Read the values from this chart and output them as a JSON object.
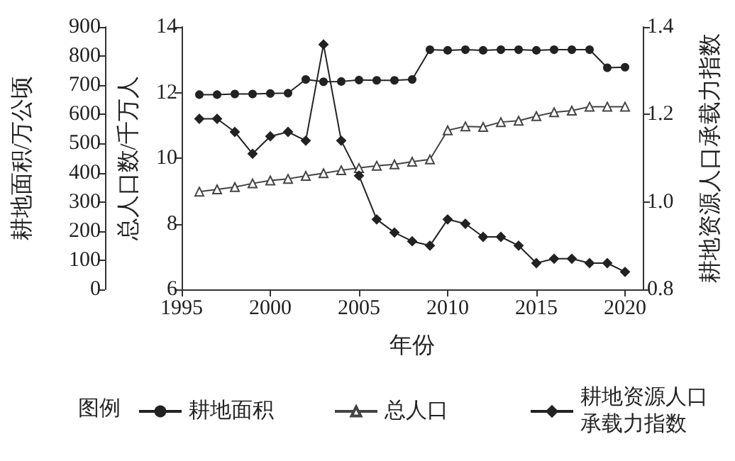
{
  "chart_data": {
    "type": "line",
    "xlabel": "年份",
    "ylabel": "耕地面积/万公顷",
    "y2label": "总人口数/千万人",
    "y3label": "耕地资源人口承载力指数",
    "legend_title": "图例",
    "legend": "bottom",
    "grid": false,
    "x": [
      1996,
      1997,
      1998,
      1999,
      2000,
      2001,
      2002,
      2003,
      2004,
      2005,
      2006,
      2007,
      2008,
      2009,
      2010,
      2011,
      2012,
      2013,
      2014,
      2015,
      2016,
      2017,
      2018,
      2019,
      2020
    ],
    "xlim": [
      1995,
      2021
    ],
    "xticks": [
      1995,
      2000,
      2005,
      2010,
      2015,
      2020
    ],
    "ylim": [
      0,
      900
    ],
    "yticks": [
      0,
      100,
      200,
      300,
      400,
      500,
      600,
      700,
      800,
      900
    ],
    "y2lim": [
      6,
      14
    ],
    "y2ticks": [
      6,
      8,
      10,
      12,
      14
    ],
    "y3lim": [
      0.8,
      1.4
    ],
    "y3ticks": [
      {
        "value": 0.8,
        "label": "0.8"
      },
      {
        "value": 1.0,
        "label": "1.0"
      },
      {
        "value": 1.2,
        "label": "1.2"
      },
      {
        "value": 1.4,
        "label": "1.4"
      }
    ],
    "series": [
      {
        "name": "耕地面积",
        "color": "#222222",
        "marker": "circle",
        "axis": "y",
        "values": [
          668,
          668,
          670,
          670,
          672,
          673,
          720,
          712,
          713,
          718,
          717,
          717,
          720,
          822,
          820,
          822,
          820,
          822,
          822,
          820,
          822,
          822,
          822,
          760,
          762
        ]
      },
      {
        "name": "总人口",
        "color": "#444444",
        "marker": "triangle",
        "axis": "y2",
        "values": [
          8.98,
          9.05,
          9.12,
          9.23,
          9.32,
          9.37,
          9.46,
          9.54,
          9.63,
          9.7,
          9.77,
          9.81,
          9.89,
          9.96,
          10.85,
          10.97,
          10.95,
          11.1,
          11.14,
          11.28,
          11.4,
          11.45,
          11.57,
          11.57,
          11.57
        ]
      },
      {
        "name": "耕地资源人口承载力指数",
        "color": "#222222",
        "marker": "diamond",
        "axis": "y3",
        "values": [
          1.19,
          1.19,
          1.16,
          1.11,
          1.15,
          1.16,
          1.14,
          1.36,
          1.14,
          1.06,
          0.96,
          0.93,
          0.91,
          0.9,
          0.96,
          0.95,
          0.92,
          0.92,
          0.9,
          0.86,
          0.87,
          0.87,
          0.86,
          0.86,
          0.84
        ]
      }
    ]
  }
}
